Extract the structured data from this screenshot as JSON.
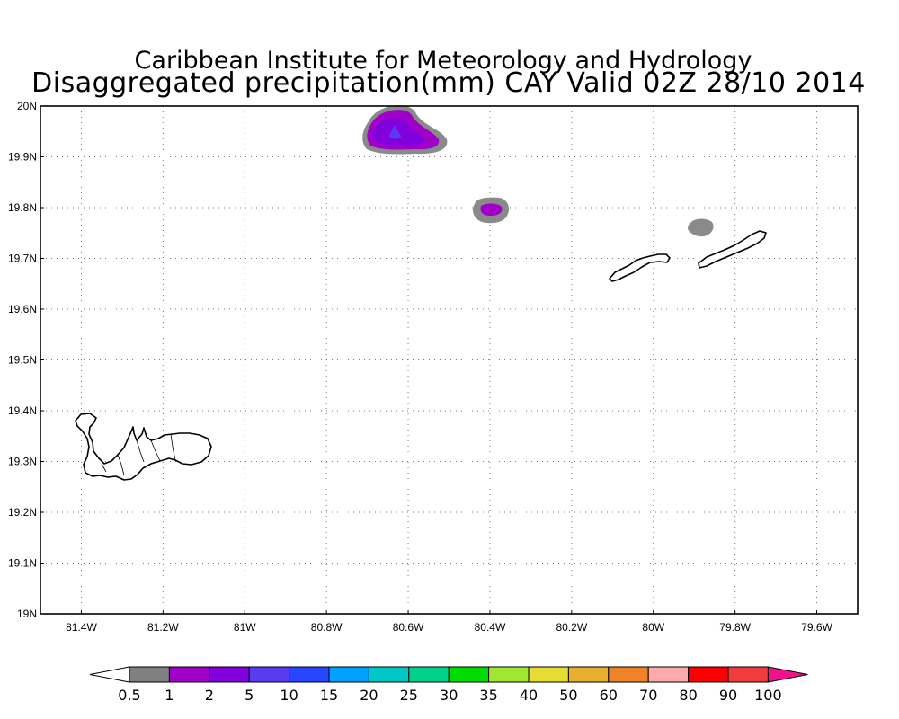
{
  "title": {
    "line1": "Caribbean Institute for Meteorology and Hydrology",
    "line2": "Disaggregated precipitation(mm) CAY Valid 02Z 28/10 2014"
  },
  "map": {
    "lon_range": [
      -81.5,
      -79.5
    ],
    "lat_range": [
      19.0,
      20.0
    ],
    "lon_ticks": [
      {
        "v": -81.4,
        "label": "81.4W"
      },
      {
        "v": -81.2,
        "label": "81.2W"
      },
      {
        "v": -81.0,
        "label": "81W"
      },
      {
        "v": -80.8,
        "label": "80.8W"
      },
      {
        "v": -80.6,
        "label": "80.6W"
      },
      {
        "v": -80.4,
        "label": "80.4W"
      },
      {
        "v": -80.2,
        "label": "80.2W"
      },
      {
        "v": -80.0,
        "label": "80W"
      },
      {
        "v": -79.8,
        "label": "79.8W"
      },
      {
        "v": -79.6,
        "label": "79.6W"
      }
    ],
    "lat_ticks": [
      {
        "v": 19.0,
        "label": "19N"
      },
      {
        "v": 19.1,
        "label": "19.1N"
      },
      {
        "v": 19.2,
        "label": "19.2N"
      },
      {
        "v": 19.3,
        "label": "19.3N"
      },
      {
        "v": 19.4,
        "label": "19.4N"
      },
      {
        "v": 19.5,
        "label": "19.5N"
      },
      {
        "v": 19.6,
        "label": "19.6N"
      },
      {
        "v": 19.7,
        "label": "19.7N"
      },
      {
        "v": 19.8,
        "label": "19.8N"
      },
      {
        "v": 19.9,
        "label": "19.9N"
      },
      {
        "v": 20.0,
        "label": "20N"
      }
    ],
    "grid": "dotted"
  },
  "colorbar": {
    "colors": [
      "#ffffff",
      "#808080",
      "#a000c8",
      "#8200dc",
      "#5a3cf0",
      "#2846ff",
      "#00a0ff",
      "#00c8c8",
      "#00d28c",
      "#00dc00",
      "#a0e632",
      "#e6dc32",
      "#e6af2d",
      "#f08228",
      "#ffaaaa",
      "#fa0000",
      "#f03c3c",
      "#f0148c"
    ],
    "labels": [
      "0.5",
      "1",
      "2",
      "5",
      "10",
      "15",
      "20",
      "25",
      "30",
      "35",
      "40",
      "50",
      "60",
      "70",
      "80",
      "90",
      "100"
    ]
  }
}
